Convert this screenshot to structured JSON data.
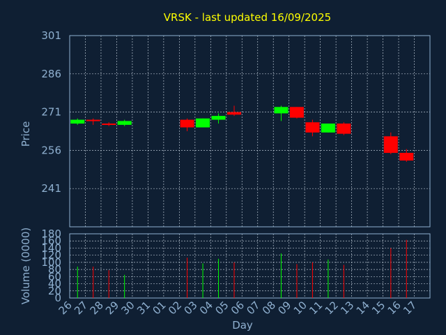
{
  "chart_data": {
    "type": "candlestick",
    "title": "VRSK - last updated 16/09/2025",
    "colors": {
      "background": "#0f1f33",
      "up": "#00ff00",
      "down": "#ff0000",
      "title": "#ffff00",
      "text": "#8fb0d0",
      "grid": "#c8d4e0"
    },
    "grid": true,
    "x_tick_labels": [
      "26",
      "27",
      "28",
      "29",
      "30",
      "31",
      "01",
      "02",
      "03",
      "04",
      "05",
      "06",
      "07",
      "08",
      "09",
      "10",
      "11",
      "12",
      "13",
      "14",
      "15",
      "16",
      "17"
    ],
    "xlabel": "Day",
    "price_panel": {
      "ylabel": "Price",
      "ylim": [
        226,
        301
      ],
      "y_ticks": [
        301,
        286,
        271,
        256,
        241
      ],
      "candles": [
        {
          "day": 0,
          "open": 266.5,
          "high": 268.5,
          "low": 266.0,
          "close": 268.0
        },
        {
          "day": 1,
          "open": 268.0,
          "high": 268.5,
          "low": 266.0,
          "close": 267.5
        },
        {
          "day": 2,
          "open": 266.5,
          "high": 267.0,
          "low": 265.5,
          "close": 266.0
        },
        {
          "day": 3,
          "open": 266.0,
          "high": 268.0,
          "low": 265.5,
          "close": 267.5
        },
        {
          "day": 7,
          "open": 268.0,
          "high": 268.5,
          "low": 263.5,
          "close": 265.0
        },
        {
          "day": 8,
          "open": 265.0,
          "high": 268.5,
          "low": 265.0,
          "close": 268.5
        },
        {
          "day": 9,
          "open": 268.0,
          "high": 270.5,
          "low": 266.5,
          "close": 269.5
        },
        {
          "day": 10,
          "open": 271.0,
          "high": 273.5,
          "low": 269.5,
          "close": 270.0
        },
        {
          "day": 13,
          "open": 270.5,
          "high": 273.5,
          "low": 267.5,
          "close": 273.0
        },
        {
          "day": 14,
          "open": 273.0,
          "high": 273.0,
          "low": 268.5,
          "close": 268.8
        },
        {
          "day": 15,
          "open": 267.0,
          "high": 268.0,
          "low": 261.5,
          "close": 263.0
        },
        {
          "day": 16,
          "open": 263.0,
          "high": 266.5,
          "low": 263.0,
          "close": 266.5
        },
        {
          "day": 17,
          "open": 266.5,
          "high": 267.0,
          "low": 262.0,
          "close": 262.5
        },
        {
          "day": 20,
          "open": 261.5,
          "high": 263.0,
          "low": 254.5,
          "close": 255.0
        },
        {
          "day": 21,
          "open": 255.0,
          "high": 256.5,
          "low": 251.5,
          "close": 252.0
        }
      ]
    },
    "volume_panel": {
      "ylabel": "Volume (0000)",
      "ylim": [
        0,
        180
      ],
      "y_ticks": [
        0,
        20,
        40,
        60,
        80,
        100,
        120,
        140,
        160,
        180
      ],
      "bars": [
        {
          "day": 0,
          "value": 88,
          "dir": "up"
        },
        {
          "day": 1,
          "value": 88,
          "dir": "down"
        },
        {
          "day": 2,
          "value": 78,
          "dir": "down"
        },
        {
          "day": 3,
          "value": 65,
          "dir": "up"
        },
        {
          "day": 7,
          "value": 113,
          "dir": "down"
        },
        {
          "day": 8,
          "value": 97,
          "dir": "up"
        },
        {
          "day": 9,
          "value": 110,
          "dir": "up"
        },
        {
          "day": 10,
          "value": 100,
          "dir": "down"
        },
        {
          "day": 13,
          "value": 125,
          "dir": "up"
        },
        {
          "day": 14,
          "value": 95,
          "dir": "down"
        },
        {
          "day": 15,
          "value": 100,
          "dir": "down"
        },
        {
          "day": 16,
          "value": 108,
          "dir": "up"
        },
        {
          "day": 17,
          "value": 93,
          "dir": "down"
        },
        {
          "day": 20,
          "value": 140,
          "dir": "down"
        },
        {
          "day": 21,
          "value": 163,
          "dir": "down"
        }
      ]
    }
  }
}
